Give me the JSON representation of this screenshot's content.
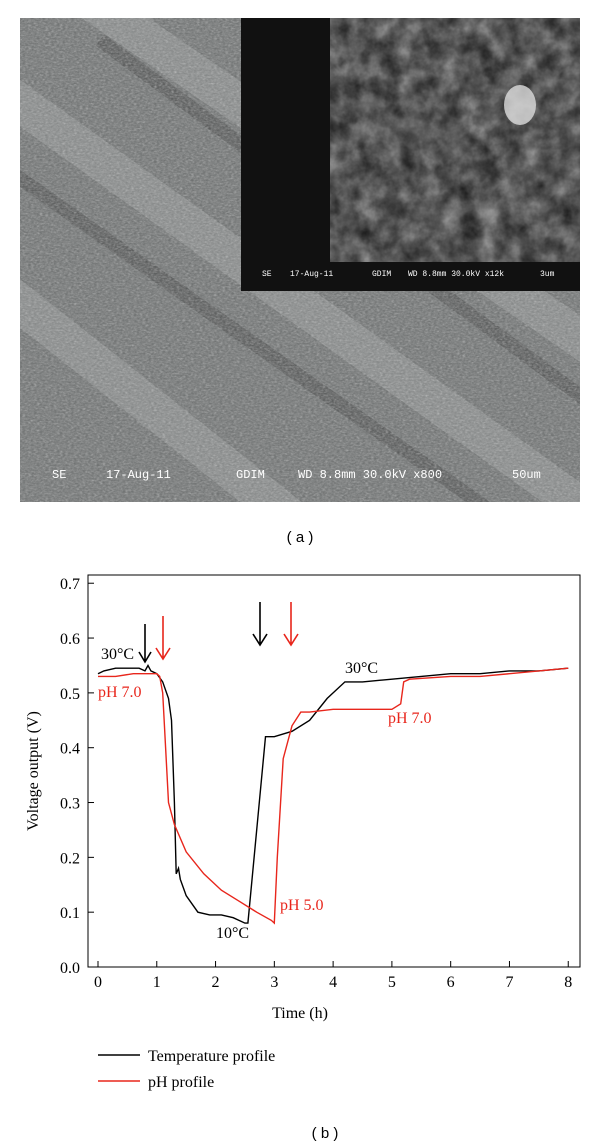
{
  "panel_a": {
    "label": "( a )",
    "micrograph_info": [
      "SE",
      "17-Aug-11",
      "GDIM",
      "WD 8.8mm 30.0kV x800",
      "50um"
    ],
    "inset_info": [
      "SE",
      "17-Aug-11",
      "GDIM",
      "WD 8.8mm 30.0kV x12k",
      "3um"
    ]
  },
  "panel_b_label": "( b )",
  "chart_data": {
    "type": "line",
    "x_label": "Time (h)",
    "y_label": "Voltage output (V)",
    "xlim": [
      -0.17,
      8.2
    ],
    "ylim": [
      0,
      0.715
    ],
    "xticks": [
      0,
      1,
      2,
      3,
      4,
      5,
      6,
      7,
      8
    ],
    "yticks": [
      {
        "value": 0,
        "label": "0.0"
      },
      0.1,
      0.2,
      0.3,
      0.4,
      0.5,
      0.6,
      0.7
    ],
    "annotations": [
      "30°C",
      "pH 7.0",
      "10°C",
      "pH 5.0",
      "30°C",
      "pH 7.0"
    ],
    "series": [
      {
        "name": "Temperature profile",
        "color": "#000000",
        "x": [
          0,
          0.1,
          0.3,
          0.5,
          0.7,
          0.8,
          0.85,
          0.9,
          1.0,
          1.1,
          1.2,
          1.25,
          1.3,
          1.33,
          1.37,
          1.4,
          1.5,
          1.7,
          1.9,
          2.1,
          2.3,
          2.5,
          2.55,
          2.7,
          2.85,
          2.9,
          3.0,
          3.3,
          3.6,
          3.9,
          4.2,
          4.5,
          5.0,
          5.5,
          6.0,
          6.5,
          7.0,
          7.5,
          8.0
        ],
        "values": [
          0.535,
          0.54,
          0.545,
          0.545,
          0.545,
          0.54,
          0.55,
          0.54,
          0.535,
          0.52,
          0.49,
          0.45,
          0.3,
          0.17,
          0.18,
          0.16,
          0.13,
          0.1,
          0.095,
          0.095,
          0.09,
          0.08,
          0.08,
          0.25,
          0.42,
          0.42,
          0.42,
          0.43,
          0.45,
          0.49,
          0.52,
          0.52,
          0.525,
          0.53,
          0.535,
          0.535,
          0.54,
          0.54,
          0.545
        ]
      },
      {
        "name": "pH profile",
        "color": "#e8261c",
        "x": [
          0,
          0.3,
          0.6,
          0.9,
          1.0,
          1.05,
          1.1,
          1.15,
          1.2,
          1.3,
          1.5,
          1.8,
          2.1,
          2.4,
          2.7,
          2.95,
          3.0,
          3.05,
          3.15,
          3.3,
          3.45,
          3.6,
          4.0,
          4.5,
          5.0,
          5.15,
          5.2,
          5.3,
          6.0,
          6.5,
          7.0,
          7.5,
          8.0
        ],
        "values": [
          0.53,
          0.53,
          0.535,
          0.535,
          0.535,
          0.53,
          0.5,
          0.4,
          0.3,
          0.26,
          0.21,
          0.17,
          0.14,
          0.12,
          0.1,
          0.085,
          0.08,
          0.2,
          0.38,
          0.44,
          0.465,
          0.465,
          0.47,
          0.47,
          0.47,
          0.48,
          0.52,
          0.525,
          0.53,
          0.53,
          0.535,
          0.54,
          0.545
        ]
      }
    ]
  }
}
